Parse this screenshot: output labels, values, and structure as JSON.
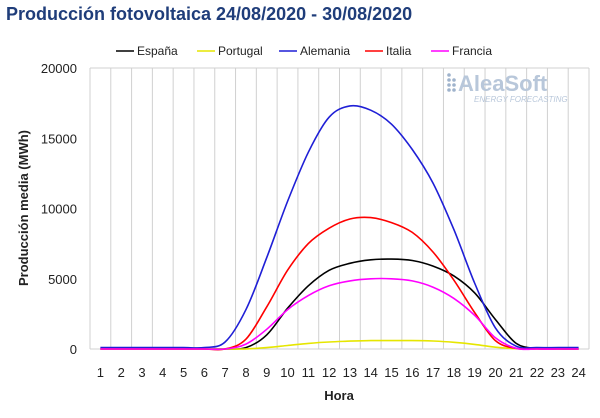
{
  "colors": {
    "title": "#1f3d7a",
    "grid": "#d0d0d0",
    "axis_text": "#222222",
    "logo_dots": "#9fb3cc"
  },
  "logo": {
    "name": "AleaSoft",
    "tagline": "ENERGY FORECASTING"
  },
  "chart_data": {
    "type": "line",
    "title": "Producción fotovoltaica 24/08/2020 - 30/08/2020",
    "xlabel": "Hora",
    "ylabel": "Producción media (MWh)",
    "x": [
      1,
      2,
      3,
      4,
      5,
      6,
      7,
      8,
      9,
      10,
      11,
      12,
      13,
      14,
      15,
      16,
      17,
      18,
      19,
      20,
      21,
      22,
      23,
      24
    ],
    "x_ticks": [
      "1",
      "2",
      "3",
      "4",
      "5",
      "6",
      "7",
      "8",
      "9",
      "10",
      "11",
      "12",
      "13",
      "14",
      "15",
      "16",
      "17",
      "18",
      "19",
      "20",
      "21",
      "22",
      "23",
      "24"
    ],
    "y_ticks": [
      "0",
      "5000",
      "10000",
      "15000",
      "20000"
    ],
    "ylim": [
      0,
      20000
    ],
    "grid": "vertical",
    "legend_position": "top",
    "series": [
      {
        "name": "España",
        "color": "#000000",
        "values": [
          0,
          0,
          0,
          0,
          0,
          0,
          0,
          100,
          1000,
          2900,
          4500,
          5600,
          6100,
          6350,
          6400,
          6300,
          5900,
          5200,
          4000,
          2100,
          400,
          30,
          0,
          0
        ]
      },
      {
        "name": "Portugal",
        "color": "#e6e600",
        "values": [
          0,
          0,
          0,
          0,
          0,
          0,
          0,
          5,
          100,
          250,
          400,
          500,
          560,
          600,
          600,
          600,
          570,
          480,
          330,
          130,
          20,
          0,
          0,
          0
        ]
      },
      {
        "name": "Alemania",
        "color": "#1f1fd6",
        "values": [
          100,
          100,
          100,
          100,
          100,
          100,
          500,
          2800,
          6500,
          10500,
          14000,
          16500,
          17300,
          17000,
          16000,
          14200,
          11800,
          8500,
          4700,
          1500,
          200,
          100,
          100,
          100
        ]
      },
      {
        "name": "Italia",
        "color": "#ff0000",
        "values": [
          0,
          0,
          0,
          0,
          0,
          0,
          0,
          700,
          3000,
          5600,
          7500,
          8600,
          9250,
          9350,
          9000,
          8300,
          6900,
          4900,
          2600,
          600,
          40,
          0,
          0,
          0
        ]
      },
      {
        "name": "Francia",
        "color": "#ff00ff",
        "values": [
          0,
          0,
          0,
          0,
          0,
          0,
          0,
          350,
          1400,
          2800,
          3800,
          4500,
          4850,
          5000,
          5000,
          4850,
          4400,
          3600,
          2400,
          800,
          50,
          0,
          0,
          0
        ]
      }
    ]
  }
}
